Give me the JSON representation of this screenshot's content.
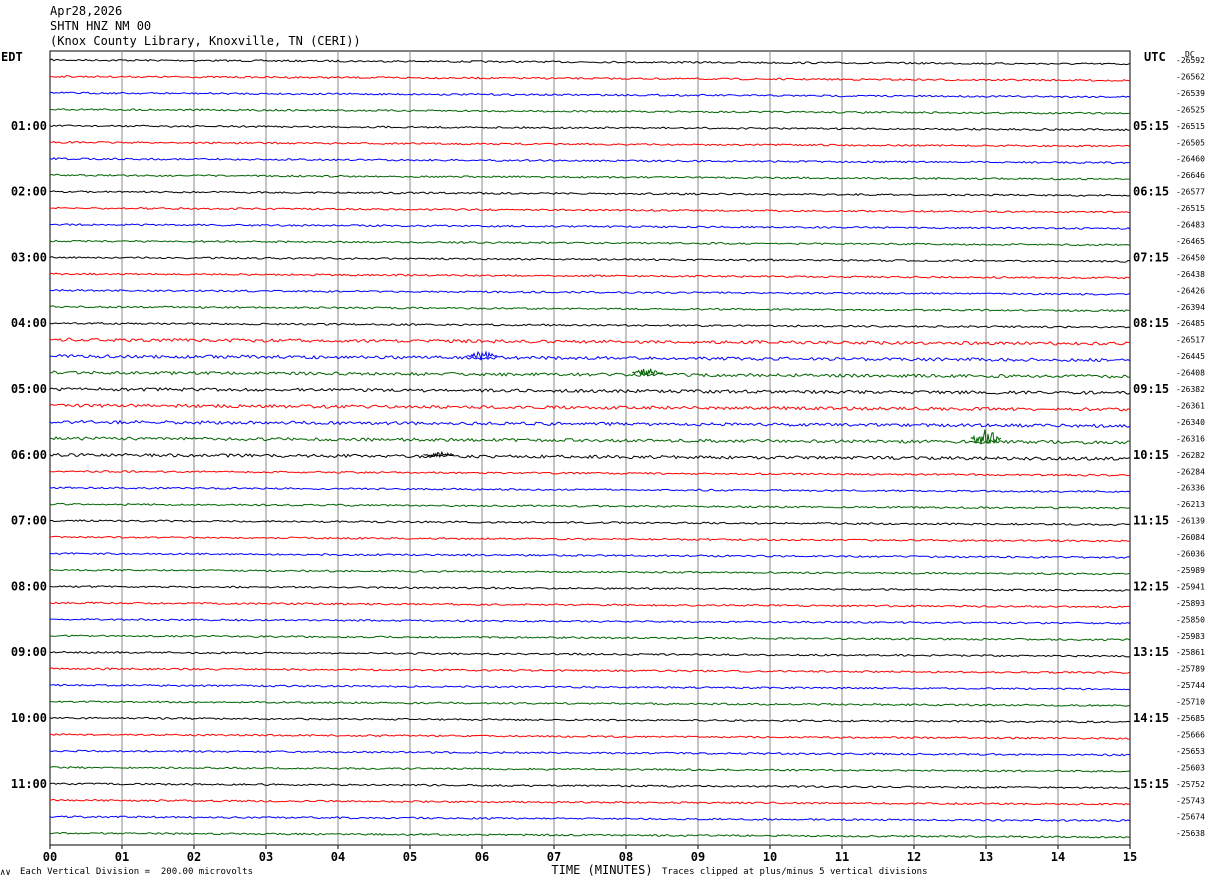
{
  "header": {
    "date": "Apr28,2026",
    "station": "SHTN HNZ NM 00",
    "location": "(Knox County Library, Knoxville, TN (CERI))"
  },
  "left_tz": "EDT",
  "right_tz": "UTC",
  "dc_label": "DC",
  "footer": {
    "scale": "Each Vertical Division =  200.00 microvolts",
    "clip": "Traces clipped at plus/minus 5 vertical divisions",
    "mark": "∧∨"
  },
  "colors": {
    "black": "#000000",
    "red": "#ff0000",
    "blue": "#0000ff",
    "green": "#006400",
    "grid": "#888888"
  },
  "chart_data": {
    "type": "line",
    "title": "",
    "xlabel": "TIME (MINUTES)",
    "x_ticks": [
      "00",
      "01",
      "02",
      "03",
      "04",
      "05",
      "06",
      "07",
      "08",
      "09",
      "10",
      "11",
      "12",
      "13",
      "14",
      "15"
    ],
    "xlim": [
      0,
      15
    ],
    "left_hour_labels": [
      "01:00",
      "02:00",
      "03:00",
      "04:00",
      "05:00",
      "06:00",
      "07:00",
      "08:00",
      "09:00",
      "10:00",
      "11:00"
    ],
    "right_hour_labels": [
      "05:15",
      "06:15",
      "07:15",
      "08:15",
      "09:15",
      "10:15",
      "11:15",
      "12:15",
      "13:15",
      "14:15",
      "15:15"
    ],
    "trace_colors": [
      "black",
      "red",
      "blue",
      "green"
    ],
    "dc_offsets": [
      -26592,
      -26562,
      -26539,
      -26525,
      -26515,
      -26505,
      -26460,
      -26646,
      -26577,
      -26515,
      -26483,
      -26465,
      -26450,
      -26438,
      -26426,
      -26394,
      -26485,
      -26517,
      -26445,
      -26408,
      -26382,
      -26361,
      -26340,
      -26316,
      -26282,
      -26284,
      -26336,
      -26213,
      -26139,
      -26084,
      -26036,
      -25989,
      -25941,
      -25893,
      -25850,
      -25983,
      -25861,
      -25789,
      -25744,
      -25710,
      -25685,
      -25666,
      -25653,
      -25603,
      -25752,
      -25743,
      -25674,
      -25638
    ]
  }
}
